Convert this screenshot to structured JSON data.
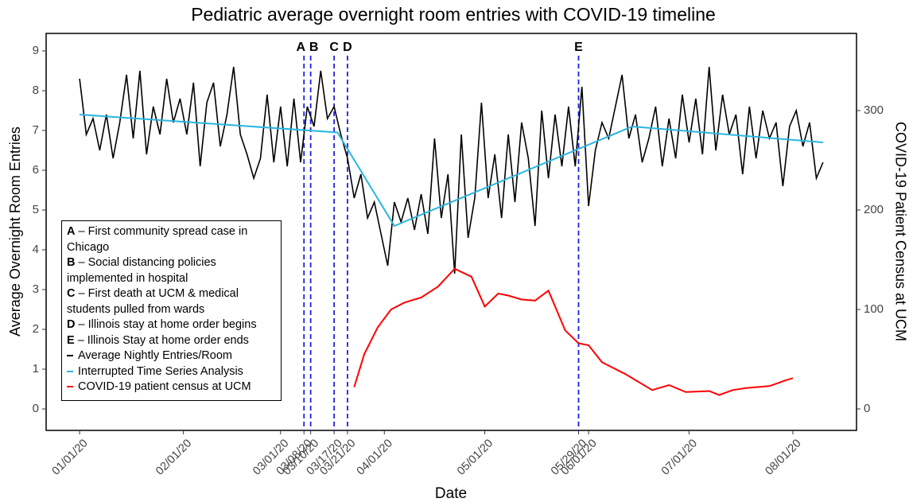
{
  "chart_data": {
    "type": "line",
    "title": "Pediatric average overnight room entries with COVID-19 timeline",
    "x_label": "Date",
    "y_label": "Average Overnight Room Entries",
    "y2_label": "COVID-19 Patient Census at UCM",
    "xlim": [
      "12/22/19",
      "08/20/20"
    ],
    "xticks": [
      "01/01/20",
      "02/01/20",
      "03/01/20",
      "03/08/20",
      "03/10/20",
      "03/17/20",
      "03/21/20",
      "04/01/20",
      "05/01/20",
      "05/29/20",
      "06/01/20",
      "07/01/20",
      "08/01/20"
    ],
    "ylim": [
      -0.54,
      9.44
    ],
    "yticks": [
      0,
      1,
      2,
      3,
      4,
      5,
      6,
      7,
      8,
      9
    ],
    "y2lim": [
      -21.6,
      377.6
    ],
    "y2ticks": [
      0,
      100,
      200,
      300
    ],
    "grid": false,
    "legend": "lower left",
    "events": [
      {
        "date": "03/08/20",
        "letter": "A",
        "text": "– First community spread case in Chicago"
      },
      {
        "date": "03/10/20",
        "letter": "B",
        "text": "– Social distancing policies implemented in hospital"
      },
      {
        "date": "03/17/20",
        "letter": "C",
        "text": "– First death at UCM & medical students pulled from wards"
      },
      {
        "date": "03/21/20",
        "letter": "D",
        "text": "– Illinois stay at home order begins"
      },
      {
        "date": "05/29/20",
        "letter": "E",
        "text": "– Illinois Stay at home order ends"
      }
    ],
    "event_color": "#1f1fe0",
    "series": [
      {
        "name": "Average Nightly Entries/Room",
        "color": "#000000",
        "x": [
          "01/01/20",
          "01/03/20",
          "01/05/20",
          "01/07/20",
          "01/09/20",
          "01/11/20",
          "01/13/20",
          "01/15/20",
          "01/17/20",
          "01/19/20",
          "01/21/20",
          "01/23/20",
          "01/25/20",
          "01/27/20",
          "01/29/20",
          "01/31/20",
          "02/02/20",
          "02/04/20",
          "02/06/20",
          "02/08/20",
          "02/10/20",
          "02/12/20",
          "02/14/20",
          "02/16/20",
          "02/18/20",
          "02/20/20",
          "02/22/20",
          "02/24/20",
          "02/26/20",
          "02/28/20",
          "03/01/20",
          "03/03/20",
          "03/05/20",
          "03/07/20",
          "03/09/20",
          "03/11/20",
          "03/13/20",
          "03/15/20",
          "03/17/20",
          "03/19/20",
          "03/21/20",
          "03/23/20",
          "03/25/20",
          "03/27/20",
          "03/29/20",
          "03/31/20",
          "04/02/20",
          "04/04/20",
          "04/06/20",
          "04/08/20",
          "04/10/20",
          "04/12/20",
          "04/14/20",
          "04/16/20",
          "04/18/20",
          "04/20/20",
          "04/22/20",
          "04/24/20",
          "04/26/20",
          "04/28/20",
          "04/30/20",
          "05/02/20",
          "05/04/20",
          "05/06/20",
          "05/08/20",
          "05/10/20",
          "05/12/20",
          "05/14/20",
          "05/16/20",
          "05/18/20",
          "05/20/20",
          "05/22/20",
          "05/24/20",
          "05/26/20",
          "05/28/20",
          "05/30/20",
          "06/01/20",
          "06/03/20",
          "06/05/20",
          "06/07/20",
          "06/09/20",
          "06/11/20",
          "06/13/20",
          "06/15/20",
          "06/17/20",
          "06/19/20",
          "06/21/20",
          "06/23/20",
          "06/25/20",
          "06/27/20",
          "06/29/20",
          "07/01/20",
          "07/03/20",
          "07/05/20",
          "07/07/20",
          "07/09/20",
          "07/11/20",
          "07/13/20",
          "07/15/20",
          "07/17/20",
          "07/19/20",
          "07/21/20",
          "07/23/20",
          "07/25/20",
          "07/27/20",
          "07/29/20",
          "07/31/20",
          "08/02/20",
          "08/04/20",
          "08/06/20",
          "08/08/20",
          "08/10/20"
        ],
        "values": [
          8.3,
          6.9,
          7.3,
          6.5,
          7.4,
          6.3,
          7.2,
          8.4,
          6.8,
          8.5,
          6.4,
          7.6,
          6.9,
          8.3,
          7.2,
          7.8,
          6.9,
          8.2,
          6.1,
          7.7,
          8.2,
          6.6,
          7.4,
          8.6,
          6.9,
          6.4,
          5.8,
          6.3,
          7.9,
          6.2,
          7.6,
          6.1,
          7.8,
          6.2,
          7.6,
          7.1,
          8.5,
          7.3,
          7.6,
          6.9,
          6.3,
          5.3,
          5.9,
          4.8,
          5.2,
          4.4,
          3.6,
          5.2,
          4.7,
          5.3,
          4.5,
          5.4,
          4.4,
          6.8,
          4.8,
          5.9,
          3.4,
          6.9,
          4.3,
          5.3,
          7.7,
          5.3,
          6.4,
          4.8,
          6.9,
          5.2,
          7.2,
          6.3,
          4.6,
          7.5,
          5.8,
          7.4,
          6.1,
          7.6,
          6.1,
          8.1,
          5.1,
          6.5,
          7.2,
          6.8,
          7.6,
          8.4,
          6.8,
          7.4,
          6.2,
          6.8,
          7.6,
          6.1,
          7.3,
          6.3,
          7.9,
          6.7,
          7.8,
          6.4,
          8.6,
          6.5,
          7.9,
          6.9,
          7.4,
          5.9,
          7.6,
          6.3,
          7.5,
          6.8,
          7.2,
          5.6,
          7.1,
          7.5,
          6.6,
          7.2,
          5.8,
          6.2
        ]
      },
      {
        "name": "Interrupted Time Series Analysis",
        "color": "#29b6e0",
        "x": [
          "01/01/20",
          "03/18/20",
          "04/04/20",
          "06/14/20",
          "08/10/20"
        ],
        "values": [
          7.4,
          6.95,
          4.6,
          7.1,
          6.7
        ]
      },
      {
        "name": "COVID-19 patient census at UCM",
        "color": "#ff0000",
        "axis": "y2",
        "x": [
          "03/23/20",
          "03/26/20",
          "03/30/20",
          "04/03/20",
          "04/07/20",
          "04/12/20",
          "04/17/20",
          "04/22/20",
          "04/27/20",
          "05/01/20",
          "05/05/20",
          "05/08/20",
          "05/12/20",
          "05/16/20",
          "05/20/20",
          "05/25/20",
          "05/29/20",
          "06/01/20",
          "06/05/20",
          "06/12/20",
          "06/20/20",
          "06/25/20",
          "06/30/20",
          "07/07/20",
          "07/10/20",
          "07/14/20",
          "07/18/20",
          "07/25/20",
          "07/30/20",
          "08/01/20"
        ],
        "values": [
          22,
          55,
          82,
          100,
          107,
          112,
          123,
          141,
          133,
          103,
          116,
          114,
          110,
          109,
          119,
          79,
          66,
          64,
          47,
          35,
          19,
          24,
          17,
          18,
          14,
          19,
          21,
          23,
          29,
          31
        ]
      }
    ]
  }
}
